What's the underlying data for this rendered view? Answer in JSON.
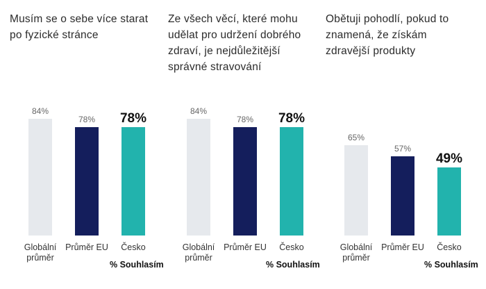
{
  "chart_data": [
    {
      "type": "bar",
      "title": "Musím se o sebe více starat po fyzické stránce",
      "categories": [
        "Globální průměr",
        "Průměr EU",
        "Česko"
      ],
      "values": [
        84,
        78,
        78
      ],
      "value_labels": [
        "84%",
        "78%",
        "78%"
      ],
      "colors": [
        "#e6e9ed",
        "#141e5c",
        "#22b3ad"
      ],
      "unit_label": "% Souhlasím",
      "ylim": [
        0,
        100
      ]
    },
    {
      "type": "bar",
      "title": "Ze všech věcí, které mohu udělat pro udržení dobrého zdraví, je nejdůležitější správné stravování",
      "categories": [
        "Globální průměr",
        "Průměr EU",
        "Česko"
      ],
      "values": [
        84,
        78,
        78
      ],
      "value_labels": [
        "84%",
        "78%",
        "78%"
      ],
      "colors": [
        "#e6e9ed",
        "#141e5c",
        "#22b3ad"
      ],
      "unit_label": "% Souhlasím",
      "ylim": [
        0,
        100
      ]
    },
    {
      "type": "bar",
      "title": "Obětuji pohodlí, pokud to znamená, že získám zdravější produkty",
      "categories": [
        "Globální průměr",
        "Průměr EU",
        "Česko"
      ],
      "values": [
        65,
        57,
        49
      ],
      "value_labels": [
        "65%",
        "57%",
        "49%"
      ],
      "colors": [
        "#e6e9ed",
        "#141e5c",
        "#22b3ad"
      ],
      "unit_label": "% Souhlasím",
      "ylim": [
        0,
        100
      ]
    }
  ]
}
